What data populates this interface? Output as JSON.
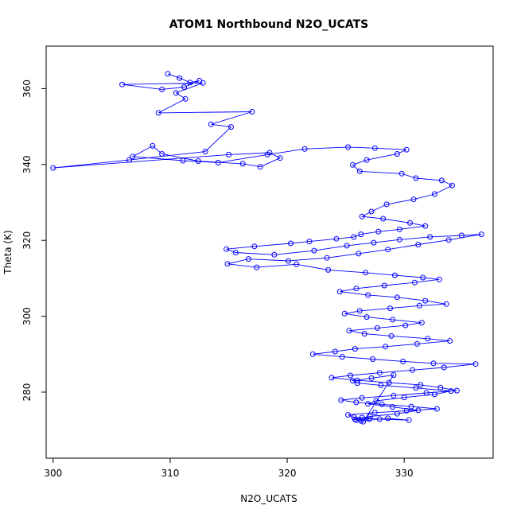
{
  "chart_data": {
    "type": "scatter",
    "title": "ATOM1 Northbound N2O_UCATS",
    "xlabel": "N2O_UCATS",
    "ylabel": "Theta (K)",
    "xlim": [
      299.4,
      337.6
    ],
    "ylim": [
      262.6,
      371.2
    ],
    "xticks": [
      300,
      310,
      320,
      330
    ],
    "yticks": [
      280,
      300,
      320,
      340,
      360
    ],
    "grid": false,
    "legend": "none",
    "marker": "open-circle",
    "connected": true,
    "series_color": "#0000ff",
    "series": [
      {
        "x": [
          309.8,
          310.8,
          311.7,
          312.5,
          311.2,
          309.3,
          305.9,
          312.8,
          310.5,
          311.3,
          309.0,
          317.0,
          313.5,
          315.2,
          313.0,
          306.5,
          300.0,
          315.0,
          318.5,
          319.4,
          317.7,
          316.2,
          312.4,
          309.3,
          308.5,
          306.8,
          311.1,
          314.1,
          318.3,
          321.5,
          325.2,
          327.5,
          330.2,
          329.4,
          326.8,
          325.6,
          326.2,
          329.8,
          331.0,
          333.2,
          334.1,
          332.6,
          330.8,
          328.5,
          327.2,
          326.4,
          328.2,
          330.5,
          331.8,
          329.6,
          327.8,
          326.3,
          325.7,
          324.2,
          321.9,
          320.3,
          317.2,
          314.8,
          315.6,
          318.9,
          322.3,
          325.1,
          327.4,
          329.6,
          332.2,
          334.9,
          336.6,
          333.8,
          331.2,
          328.6,
          326.1,
          323.4,
          320.1,
          316.7,
          314.9,
          317.4,
          320.8,
          323.5,
          326.7,
          329.2,
          331.6,
          333.0,
          330.9,
          328.3,
          325.9,
          324.5,
          326.9,
          329.4,
          331.8,
          333.6,
          331.3,
          328.8,
          326.2,
          324.9,
          326.8,
          329.0,
          331.5,
          330.1,
          327.7,
          325.3,
          326.6,
          328.9,
          332.0,
          333.9,
          331.1,
          328.4,
          325.8,
          324.1,
          322.2,
          324.7,
          327.3,
          329.9,
          332.5,
          336.1,
          333.4,
          330.7,
          327.9,
          325.4,
          323.8,
          326.0,
          328.7,
          331.4,
          333.1,
          334.5,
          331.9,
          329.1,
          326.4,
          324.6,
          325.9,
          328.1,
          330.6,
          332.8,
          330.2,
          327.5,
          325.2,
          325.7,
          327.9,
          330.4,
          328.6,
          326.3,
          325.8,
          327.1,
          329.4,
          331.2,
          329.0,
          326.9,
          327.6,
          330.0,
          332.6,
          334.0,
          331.0,
          328.0,
          326.0,
          325.6,
          327.2,
          329.1,
          326.5,
          325.9,
          327.0,
          326.4
        ],
        "y": [
          363.9,
          362.8,
          361.6,
          362.1,
          360.4,
          359.8,
          361.1,
          361.5,
          358.9,
          357.3,
          353.6,
          353.9,
          350.6,
          349.9,
          343.4,
          341.2,
          339.1,
          342.6,
          343.1,
          341.7,
          339.4,
          340.2,
          340.9,
          342.8,
          344.9,
          342.1,
          341.0,
          340.5,
          342.6,
          344.1,
          344.6,
          344.3,
          343.9,
          342.8,
          341.2,
          339.9,
          338.2,
          337.6,
          336.4,
          335.8,
          334.5,
          332.2,
          330.8,
          329.5,
          327.6,
          326.3,
          325.7,
          324.6,
          323.8,
          322.9,
          322.3,
          321.6,
          320.9,
          320.4,
          319.7,
          319.2,
          318.4,
          317.7,
          316.8,
          316.2,
          317.3,
          318.6,
          319.4,
          320.2,
          320.9,
          321.3,
          321.6,
          320.1,
          318.9,
          317.6,
          316.5,
          315.4,
          314.6,
          315.1,
          313.8,
          312.9,
          313.7,
          312.2,
          311.5,
          310.8,
          310.2,
          309.7,
          308.9,
          308.1,
          307.3,
          306.5,
          305.6,
          305.0,
          304.1,
          303.2,
          302.8,
          302.1,
          301.4,
          300.7,
          299.8,
          299.1,
          298.3,
          297.6,
          296.9,
          296.2,
          295.4,
          294.8,
          294.1,
          293.5,
          292.7,
          292.0,
          291.4,
          290.7,
          290.0,
          289.3,
          288.7,
          288.1,
          287.6,
          287.4,
          286.5,
          285.8,
          285.1,
          284.4,
          283.8,
          283.1,
          282.5,
          281.9,
          281.2,
          280.4,
          279.8,
          279.1,
          278.5,
          277.9,
          277.3,
          276.8,
          276.2,
          275.6,
          275.1,
          274.6,
          274.0,
          273.4,
          272.9,
          272.6,
          273.1,
          272.4,
          272.8,
          273.6,
          274.3,
          275.2,
          276.1,
          276.9,
          277.7,
          278.6,
          279.4,
          280.3,
          281.1,
          281.8,
          282.4,
          283.0,
          283.7,
          284.5,
          272.2,
          272.6,
          272.9,
          273.3
        ]
      }
    ]
  }
}
